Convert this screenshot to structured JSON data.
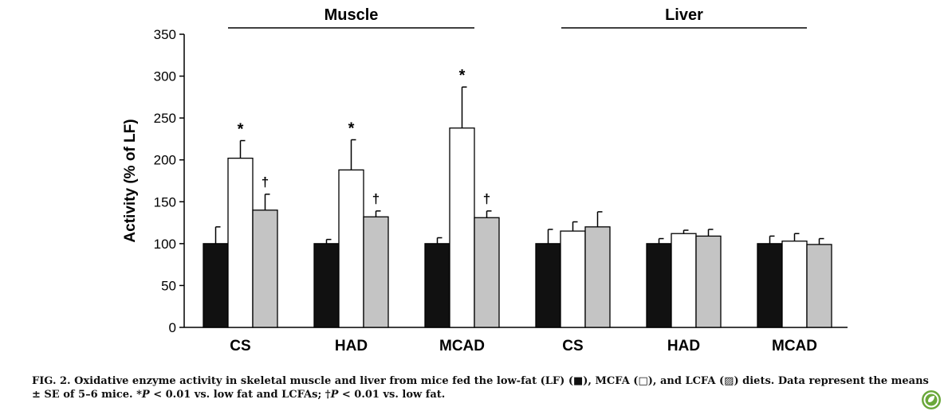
{
  "chart_data": {
    "type": "bar",
    "ylabel": "Activity (% of LF)",
    "xlabel": "",
    "ylim": [
      0,
      350
    ],
    "yticks": [
      0,
      50,
      100,
      150,
      200,
      250,
      300,
      350
    ],
    "grid": false,
    "panels": [
      {
        "name": "Muscle",
        "categories": [
          "CS",
          "HAD",
          "MCAD"
        ]
      },
      {
        "name": "Liver",
        "categories": [
          "CS",
          "HAD",
          "MCAD"
        ]
      }
    ],
    "series_colors": [
      "#111111",
      "#ffffff",
      "#c4c4c4"
    ],
    "groups": [
      {
        "panel": "Muscle",
        "category": "CS",
        "values": [
          100,
          202,
          140
        ],
        "errors": [
          20,
          21,
          19
        ],
        "marks": [
          "",
          "*",
          "†"
        ]
      },
      {
        "panel": "Muscle",
        "category": "HAD",
        "values": [
          100,
          188,
          132
        ],
        "errors": [
          5,
          36,
          7
        ],
        "marks": [
          "",
          "*",
          "†"
        ]
      },
      {
        "panel": "Muscle",
        "category": "MCAD",
        "values": [
          100,
          238,
          131
        ],
        "errors": [
          7,
          49,
          8
        ],
        "marks": [
          "",
          "*",
          "†"
        ]
      },
      {
        "panel": "Liver",
        "category": "CS",
        "values": [
          100,
          115,
          120
        ],
        "errors": [
          17,
          11,
          18
        ],
        "marks": [
          "",
          "",
          ""
        ]
      },
      {
        "panel": "Liver",
        "category": "HAD",
        "values": [
          100,
          112,
          109
        ],
        "errors": [
          6,
          4,
          8
        ],
        "marks": [
          "",
          "",
          ""
        ]
      },
      {
        "panel": "Liver",
        "category": "MCAD",
        "values": [
          100,
          103,
          99
        ],
        "errors": [
          9,
          9,
          7
        ],
        "marks": [
          "",
          "",
          ""
        ]
      }
    ]
  },
  "caption": {
    "part1": "FIG. 2. Oxidative enzyme activity in skeletal muscle and liver from mice fed the low-fat (LF) (",
    "lf_symbol": "■",
    "part2": "), MCFA (",
    "mcfa_symbol": "□",
    "part3": "), and LCFA (",
    "lcfa_symbol": "▨",
    "part4": ") diets. Data represent the means ± SE of 5–6 mice. *",
    "p1": "P",
    "part5": " < 0.01 vs. low fat and LCFAs; †",
    "p2": "P",
    "part6": " < 0.01 vs. low fat."
  },
  "logo": {
    "icon": "leaf-badge-icon",
    "color": "#6aa83a"
  }
}
